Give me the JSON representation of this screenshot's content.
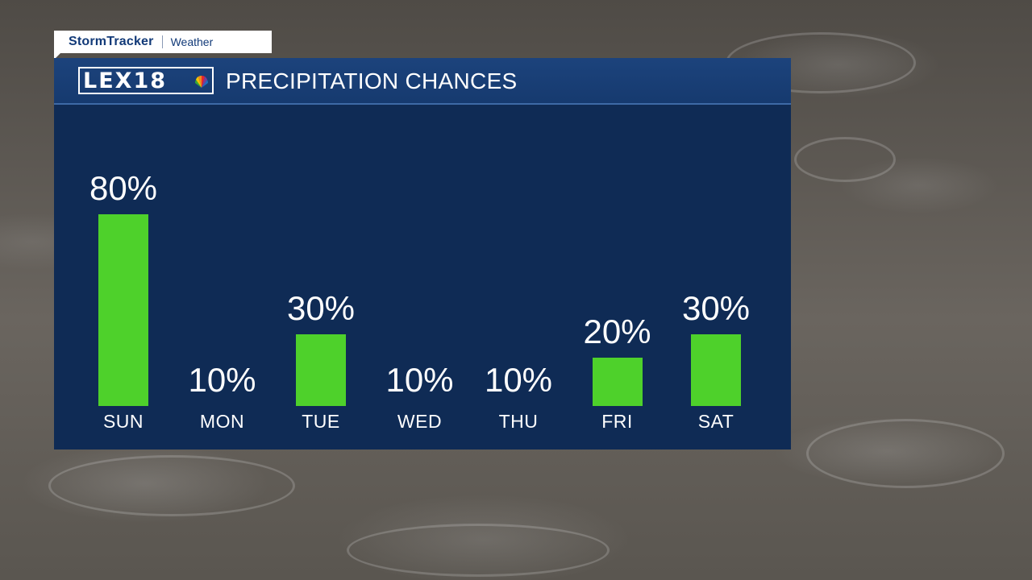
{
  "brand": {
    "main": "StormTracker",
    "sub": "Weather"
  },
  "header": {
    "logo_text": "LEX18",
    "title": "PRECIPITATION CHANCES"
  },
  "colors": {
    "bar": "#4ed12b",
    "panel": "#0f2b55",
    "header": "#1c437c",
    "brand_text": "#123a78"
  },
  "chart_data": {
    "type": "bar",
    "title": "PRECIPITATION CHANCES",
    "categories": [
      "SUN",
      "MON",
      "TUE",
      "WED",
      "THU",
      "FRI",
      "SAT"
    ],
    "values": [
      80,
      10,
      30,
      10,
      10,
      20,
      30
    ],
    "value_labels": [
      "80%",
      "10%",
      "30%",
      "10%",
      "10%",
      "20%",
      "30%"
    ],
    "unit": "%",
    "ylim": [
      0,
      100
    ],
    "grid": false,
    "legend": "none"
  }
}
